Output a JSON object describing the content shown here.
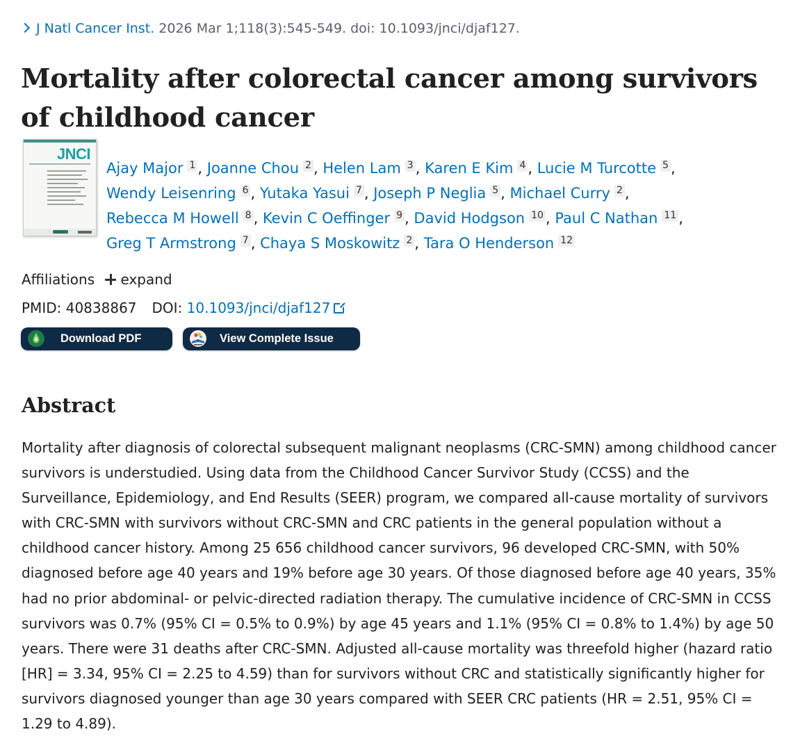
{
  "citation": {
    "journal": "J Natl Cancer Inst.",
    "details": "2026 Mar 1;118(3):545-549. doi: 10.1093/jnci/djaf127."
  },
  "title": "Mortality after colorectal cancer among survivors of childhood cancer",
  "cover": {
    "logo_text": "JNCI",
    "accent_color": "#1c9fa8"
  },
  "authors": [
    {
      "name": "Ajay Major",
      "aff": "1"
    },
    {
      "name": "Joanne Chou",
      "aff": "2"
    },
    {
      "name": "Helen Lam",
      "aff": "3"
    },
    {
      "name": "Karen E Kim",
      "aff": "4"
    },
    {
      "name": "Lucie M Turcotte",
      "aff": "5"
    },
    {
      "name": "Wendy Leisenring",
      "aff": "6"
    },
    {
      "name": "Yutaka Yasui",
      "aff": "7"
    },
    {
      "name": "Joseph P Neglia",
      "aff": "5"
    },
    {
      "name": "Michael Curry",
      "aff": "2"
    },
    {
      "name": "Rebecca M Howell",
      "aff": "8"
    },
    {
      "name": "Kevin C Oeffinger",
      "aff": "9"
    },
    {
      "name": "David Hodgson",
      "aff": "10"
    },
    {
      "name": "Paul C Nathan",
      "aff": "11"
    },
    {
      "name": "Greg T Armstrong",
      "aff": "7"
    },
    {
      "name": "Chaya S Moskowitz",
      "aff": "2"
    },
    {
      "name": "Tara O Henderson",
      "aff": "12"
    }
  ],
  "affiliations": {
    "label": "Affiliations",
    "expand_label": "expand"
  },
  "identifiers": {
    "pmid_label": "PMID:",
    "pmid": "40838867",
    "doi_label": "DOI:",
    "doi": "10.1093/jnci/djaf127"
  },
  "buttons": {
    "download_pdf": "Download PDF",
    "view_issue": "View Complete Issue"
  },
  "abstract": {
    "heading": "Abstract",
    "text": "Mortality after diagnosis of colorectal subsequent malignant neoplasms (CRC-SMN) among childhood cancer survivors is understudied. Using data from the Childhood Cancer Survivor Study (CCSS) and the Surveillance, Epidemiology, and End Results (SEER) program, we compared all-cause mortality of survivors with CRC-SMN with survivors without CRC-SMN and CRC patients in the general population without a childhood cancer history. Among 25 656 childhood cancer survivors, 96 developed CRC-SMN, with 50% diagnosed before age 40 years and 19% before age 30 years. Of those diagnosed before age 40 years, 35% had no prior abdominal- or pelvic-directed radiation therapy. The cumulative incidence of CRC-SMN in CCSS survivors was 0.7% (95% CI = 0.5% to 0.9%) by age 45 years and 1.1% (95% CI = 0.8% to 1.4%) by age 50 years. There were 31 deaths after CRC-SMN. Adjusted all-cause mortality was threefold higher (hazard ratio [HR] = 3.34, 95% CI = 2.25 to 4.59) than for survivors without CRC and statistically significantly higher for survivors diagnosed younger than age 30 years compared with SEER CRC patients (HR = 2.51, 95% CI = 1.29 to 4.89)."
  },
  "colors": {
    "link": "#0071bc",
    "button_bg": "#0f2a44",
    "text": "#212121"
  }
}
